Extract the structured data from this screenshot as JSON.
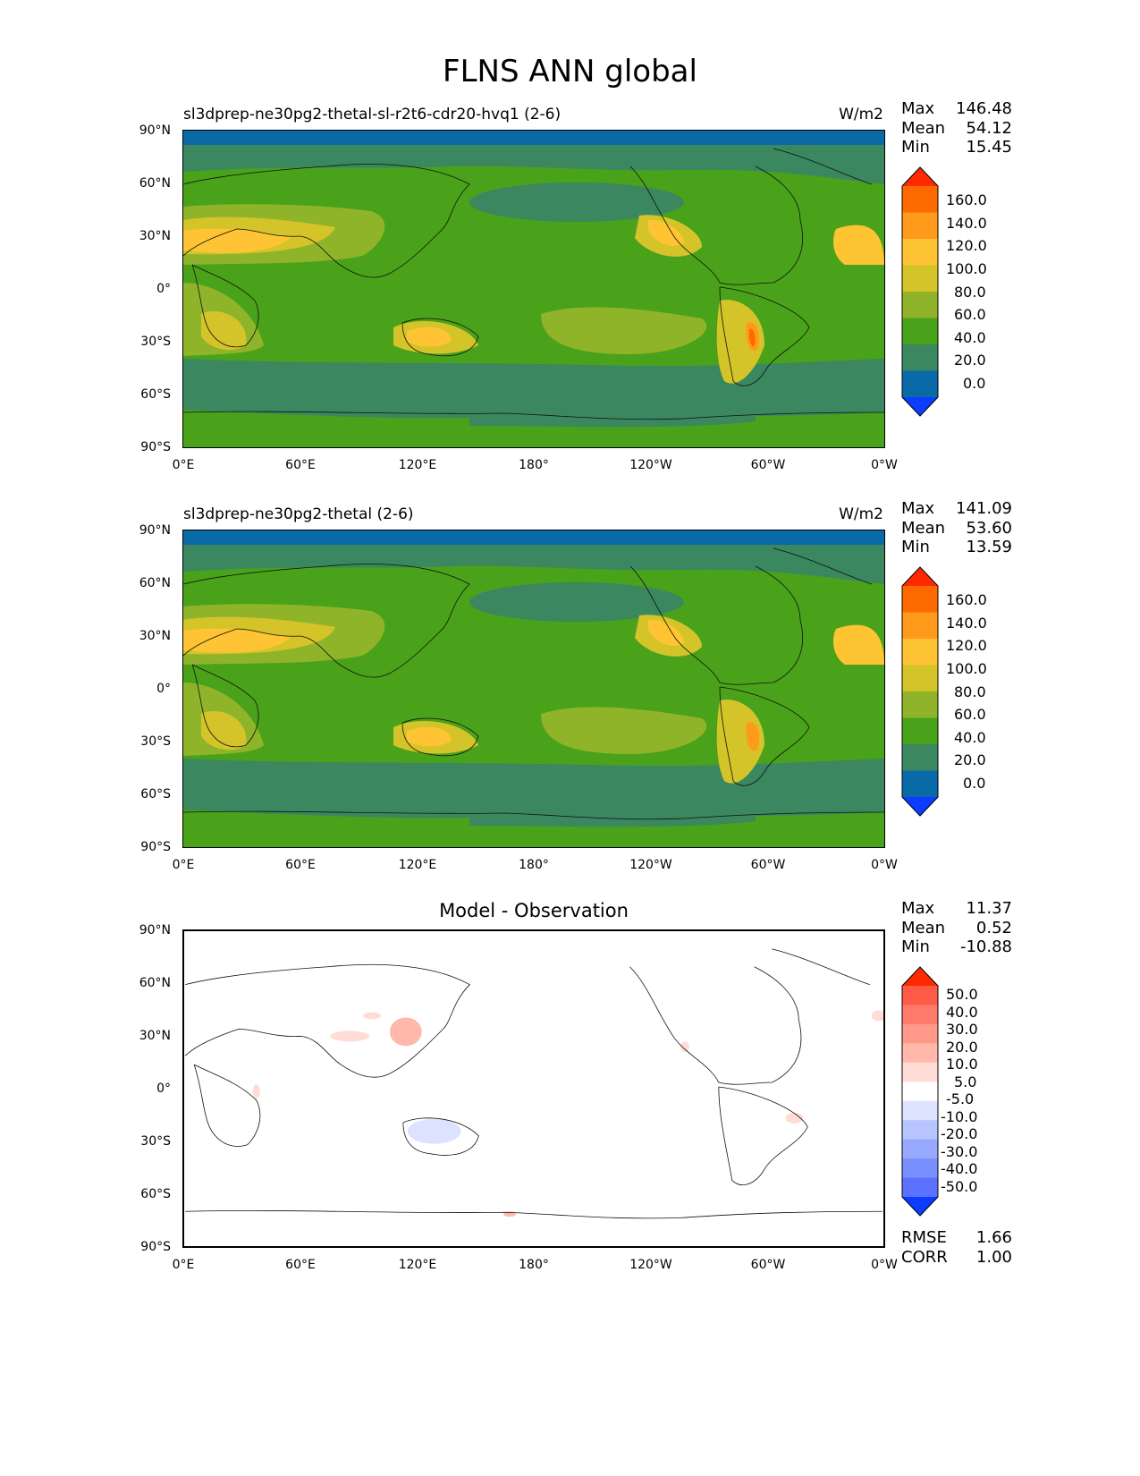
{
  "figure": {
    "title": "FLNS ANN global"
  },
  "chart_data": [
    {
      "type": "contour-map",
      "title": "sl3dprep-ne30pg2-thetal-sl-r2t6-cdr20-hvq1 (2-6)",
      "units": "W/m2",
      "stats": {
        "max": "146.48",
        "mean": "54.12",
        "min": "15.45"
      },
      "xticks": [
        "0°E",
        "60°E",
        "120°E",
        "180°",
        "120°W",
        "60°W",
        "0°W"
      ],
      "yticks": [
        "90°N",
        "60°N",
        "30°N",
        "0°",
        "30°S",
        "60°S",
        "90°S"
      ],
      "xlim": [
        0,
        360
      ],
      "ylim": [
        -90,
        90
      ],
      "colorbar": {
        "levels": [
          "160.0",
          "140.0",
          "120.0",
          "100.0",
          "80.0",
          "60.0",
          "40.0",
          "20.0",
          "0.0"
        ],
        "colors": [
          "#ff2a00",
          "#ff6a00",
          "#ff9a1a",
          "#ffc433",
          "#d4c42a",
          "#8fb42a",
          "#4aa21a",
          "#3a8760",
          "#0a6aa8",
          "#0a3dff"
        ]
      }
    },
    {
      "type": "contour-map",
      "title": "sl3dprep-ne30pg2-thetal (2-6)",
      "units": "W/m2",
      "stats": {
        "max": "141.09",
        "mean": "53.60",
        "min": "13.59"
      },
      "xticks": [
        "0°E",
        "60°E",
        "120°E",
        "180°",
        "120°W",
        "60°W",
        "0°W"
      ],
      "yticks": [
        "90°N",
        "60°N",
        "30°N",
        "0°",
        "30°S",
        "60°S",
        "90°S"
      ],
      "xlim": [
        0,
        360
      ],
      "ylim": [
        -90,
        90
      ],
      "colorbar": {
        "levels": [
          "160.0",
          "140.0",
          "120.0",
          "100.0",
          "80.0",
          "60.0",
          "40.0",
          "20.0",
          "0.0"
        ],
        "colors": [
          "#ff2a00",
          "#ff6a00",
          "#ff9a1a",
          "#ffc433",
          "#d4c42a",
          "#8fb42a",
          "#4aa21a",
          "#3a8760",
          "#0a6aa8",
          "#0a3dff"
        ]
      }
    },
    {
      "type": "contour-map",
      "title": "Model - Observation",
      "stats": {
        "max": "11.37",
        "mean": "0.52",
        "min": "-10.88",
        "rmse": "1.66",
        "corr": "1.00"
      },
      "stat_labels": {
        "rmse": "RMSE",
        "corr": "CORR"
      },
      "xticks": [
        "0°E",
        "60°E",
        "120°E",
        "180°",
        "120°W",
        "60°W",
        "0°W"
      ],
      "yticks": [
        "90°N",
        "60°N",
        "30°N",
        "0°",
        "30°S",
        "60°S",
        "90°S"
      ],
      "xlim": [
        0,
        360
      ],
      "ylim": [
        -90,
        90
      ],
      "colorbar": {
        "levels": [
          "50.0",
          "40.0",
          "30.0",
          "20.0",
          "10.0",
          "5.0",
          "-5.0",
          "-10.0",
          "-20.0",
          "-30.0",
          "-40.0",
          "-50.0"
        ],
        "colors": [
          "#ff2a00",
          "#ff5a46",
          "#ff7a6a",
          "#ff9a8a",
          "#ffb8aa",
          "#ffdcd6",
          "#ffffff",
          "#dce2ff",
          "#b8c4ff",
          "#97a8ff",
          "#7890ff",
          "#5a72ff",
          "#0a3dff"
        ]
      }
    }
  ],
  "labels": {
    "max": "Max",
    "mean": "Mean",
    "min": "Min"
  }
}
